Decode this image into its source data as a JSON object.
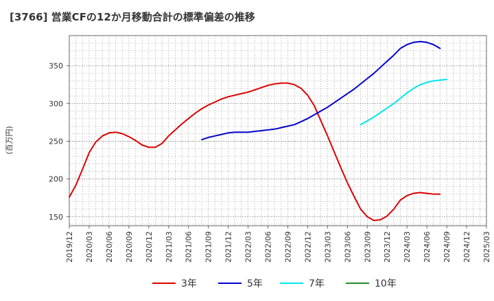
{
  "chart_data": {
    "type": "line",
    "title": "[3766]  営業CFの12か月移動合計の標準偏差の推移",
    "ylabel": "(百万円)",
    "xlabel": "",
    "ylim": [
      138,
      390
    ],
    "yticks": [
      150,
      200,
      250,
      300,
      350
    ],
    "xlim": [
      "2019-12",
      "2025-03"
    ],
    "xticks": [
      "2019/12",
      "2020/03",
      "2020/06",
      "2020/09",
      "2020/12",
      "2021/03",
      "2021/06",
      "2021/09",
      "2021/12",
      "2022/03",
      "2022/06",
      "2022/09",
      "2022/12",
      "2023/03",
      "2023/06",
      "2023/09",
      "2023/12",
      "2024/03",
      "2024/06",
      "2024/09",
      "2024/12",
      "2025/03"
    ],
    "grid": true,
    "legend_position": "bottom",
    "series": [
      {
        "name": "3年",
        "color": "#dd0000",
        "points": [
          [
            "2019-12",
            176
          ],
          [
            "2020-01",
            192
          ],
          [
            "2020-02",
            213
          ],
          [
            "2020-03",
            235
          ],
          [
            "2020-04",
            249
          ],
          [
            "2020-05",
            257
          ],
          [
            "2020-06",
            261
          ],
          [
            "2020-07",
            262
          ],
          [
            "2020-08",
            260
          ],
          [
            "2020-09",
            256
          ],
          [
            "2020-10",
            251
          ],
          [
            "2020-11",
            245
          ],
          [
            "2020-12",
            242
          ],
          [
            "2021-01",
            242
          ],
          [
            "2021-02",
            247
          ],
          [
            "2021-03",
            257
          ],
          [
            "2021-04",
            265
          ],
          [
            "2021-05",
            273
          ],
          [
            "2021-06",
            280
          ],
          [
            "2021-07",
            287
          ],
          [
            "2021-08",
            293
          ],
          [
            "2021-09",
            298
          ],
          [
            "2021-10",
            302
          ],
          [
            "2021-11",
            306
          ],
          [
            "2021-12",
            309
          ],
          [
            "2022-01",
            311
          ],
          [
            "2022-02",
            313
          ],
          [
            "2022-03",
            315
          ],
          [
            "2022-04",
            318
          ],
          [
            "2022-05",
            321
          ],
          [
            "2022-06",
            324
          ],
          [
            "2022-07",
            326
          ],
          [
            "2022-08",
            327
          ],
          [
            "2022-09",
            327
          ],
          [
            "2022-10",
            325
          ],
          [
            "2022-11",
            320
          ],
          [
            "2022-12",
            311
          ],
          [
            "2023-01",
            297
          ],
          [
            "2023-02",
            277
          ],
          [
            "2023-03",
            257
          ],
          [
            "2023-04",
            236
          ],
          [
            "2023-05",
            215
          ],
          [
            "2023-06",
            195
          ],
          [
            "2023-07",
            177
          ],
          [
            "2023-08",
            160
          ],
          [
            "2023-09",
            150
          ],
          [
            "2023-10",
            145
          ],
          [
            "2023-11",
            146
          ],
          [
            "2023-12",
            151
          ],
          [
            "2024-01",
            160
          ],
          [
            "2024-02",
            172
          ],
          [
            "2024-03",
            178
          ],
          [
            "2024-04",
            181
          ],
          [
            "2024-05",
            182
          ],
          [
            "2024-06",
            181
          ],
          [
            "2024-07",
            180
          ],
          [
            "2024-08",
            180
          ]
        ]
      },
      {
        "name": "5年",
        "color": "#0000cc",
        "points": [
          [
            "2021-08",
            252
          ],
          [
            "2021-09",
            255
          ],
          [
            "2021-10",
            257
          ],
          [
            "2021-11",
            259
          ],
          [
            "2021-12",
            261
          ],
          [
            "2022-01",
            262
          ],
          [
            "2022-02",
            262
          ],
          [
            "2022-03",
            262
          ],
          [
            "2022-04",
            263
          ],
          [
            "2022-05",
            264
          ],
          [
            "2022-06",
            265
          ],
          [
            "2022-07",
            266
          ],
          [
            "2022-08",
            268
          ],
          [
            "2022-09",
            270
          ],
          [
            "2022-10",
            272
          ],
          [
            "2022-11",
            276
          ],
          [
            "2022-12",
            280
          ],
          [
            "2023-01",
            285
          ],
          [
            "2023-02",
            290
          ],
          [
            "2023-03",
            295
          ],
          [
            "2023-04",
            301
          ],
          [
            "2023-05",
            307
          ],
          [
            "2023-06",
            313
          ],
          [
            "2023-07",
            319
          ],
          [
            "2023-08",
            326
          ],
          [
            "2023-09",
            333
          ],
          [
            "2023-10",
            340
          ],
          [
            "2023-11",
            348
          ],
          [
            "2023-12",
            356
          ],
          [
            "2024-01",
            364
          ],
          [
            "2024-02",
            373
          ],
          [
            "2024-03",
            378
          ],
          [
            "2024-04",
            381
          ],
          [
            "2024-05",
            382
          ],
          [
            "2024-06",
            381
          ],
          [
            "2024-07",
            378
          ],
          [
            "2024-08",
            373
          ]
        ]
      },
      {
        "name": "7年",
        "color": "#00e5ee",
        "points": [
          [
            "2023-08",
            272
          ],
          [
            "2023-09",
            277
          ],
          [
            "2023-10",
            282
          ],
          [
            "2023-11",
            288
          ],
          [
            "2023-12",
            294
          ],
          [
            "2024-01",
            300
          ],
          [
            "2024-02",
            307
          ],
          [
            "2024-03",
            314
          ],
          [
            "2024-04",
            320
          ],
          [
            "2024-05",
            325
          ],
          [
            "2024-06",
            328
          ],
          [
            "2024-07",
            330
          ],
          [
            "2024-08",
            331
          ],
          [
            "2024-09",
            332
          ]
        ]
      },
      {
        "name": "10年",
        "color": "#228b22",
        "points": []
      }
    ]
  }
}
